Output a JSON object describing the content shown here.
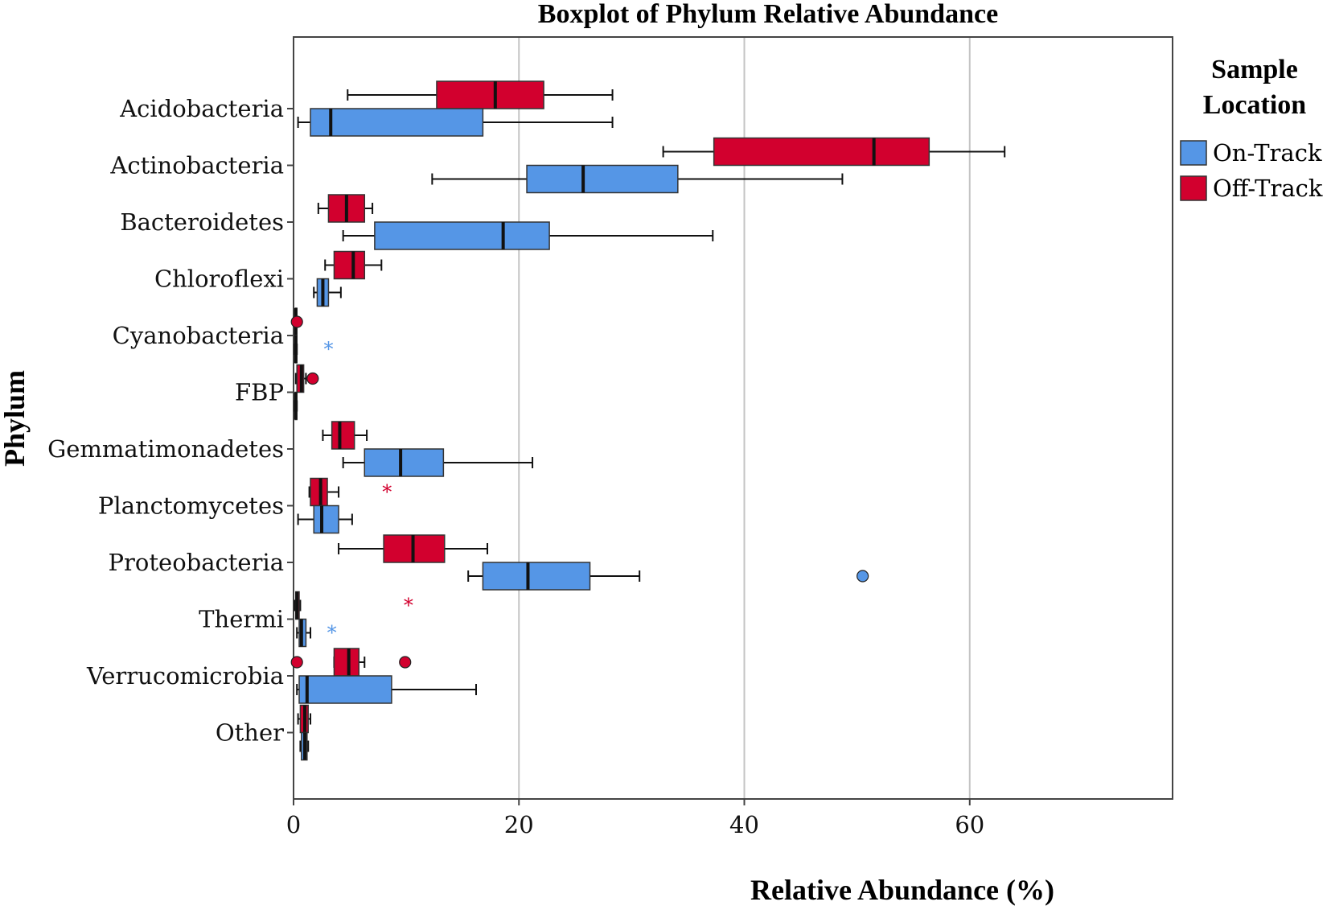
{
  "chart_data": {
    "type": "boxplot",
    "orientation": "horizontal",
    "title": "Boxplot of Phylum Relative Abundance",
    "xlabel": "Relative Abundance (%)",
    "ylabel": "Phylum",
    "xlim": [
      0,
      78
    ],
    "xticks": [
      0,
      20,
      40,
      60
    ],
    "xtick_labels": [
      "0",
      "20",
      "40",
      "60"
    ],
    "grid": "vertical",
    "legend": {
      "title_line1": "Sample",
      "title_line2": "Location",
      "position": "right",
      "entries": [
        "On-Track",
        "Off-Track"
      ]
    },
    "colors": {
      "On-Track": "#5596e6",
      "Off-Track": "#d2002e"
    },
    "categories": [
      "Acidobacteria",
      "Actinobacteria",
      "Bacteroidetes",
      "Chloroflexi",
      "Cyanobacteria",
      "FBP",
      "Gemmatimonadetes",
      "Planctomycetes",
      "Proteobacteria",
      "Thermi",
      "Verrucomicrobia",
      "Other"
    ],
    "series": [
      {
        "name": "Off-Track",
        "boxes": [
          {
            "min": 4.8,
            "q1": 12.7,
            "median": 17.9,
            "q3": 22.2,
            "max": 28.3,
            "outliers": []
          },
          {
            "min": 32.8,
            "q1": 37.3,
            "median": 51.5,
            "q3": 56.4,
            "max": 63.1,
            "outliers": []
          },
          {
            "min": 2.2,
            "q1": 3.1,
            "median": 4.7,
            "q3": 6.3,
            "max": 7.0,
            "outliers": []
          },
          {
            "min": 2.8,
            "q1": 3.6,
            "median": 5.3,
            "q3": 6.3,
            "max": 7.8,
            "outliers": []
          },
          {
            "min": 0.1,
            "q1": 0.15,
            "median": 0.2,
            "q3": 0.25,
            "max": 0.3,
            "outliers": [
              {
                "value": 0.3,
                "marker": "circle"
              }
            ]
          },
          {
            "min": 0.2,
            "q1": 0.3,
            "median": 0.7,
            "q3": 0.9,
            "max": 1.1,
            "outliers": [
              {
                "value": 1.7,
                "marker": "circle"
              }
            ]
          },
          {
            "min": 2.6,
            "q1": 3.4,
            "median": 4.1,
            "q3": 5.4,
            "max": 6.5,
            "outliers": []
          },
          {
            "min": 1.4,
            "q1": 1.5,
            "median": 2.4,
            "q3": 3.0,
            "max": 4.0,
            "outliers": [
              {
                "value": 8.3,
                "marker": "star"
              }
            ]
          },
          {
            "min": 4.0,
            "q1": 8.0,
            "median": 10.6,
            "q3": 13.4,
            "max": 17.2,
            "outliers": []
          },
          {
            "min": 0.1,
            "q1": 0.2,
            "median": 0.3,
            "q3": 0.5,
            "max": 0.6,
            "outliers": [
              {
                "value": 10.2,
                "marker": "star"
              }
            ]
          },
          {
            "min": 3.6,
            "q1": 3.6,
            "median": 4.9,
            "q3": 5.8,
            "max": 6.3,
            "outliers": [
              {
                "value": 0.3,
                "marker": "circle"
              },
              {
                "value": 9.9,
                "marker": "circle"
              }
            ]
          },
          {
            "min": 0.4,
            "q1": 0.6,
            "median": 1.0,
            "q3": 1.3,
            "max": 1.5,
            "outliers": []
          }
        ]
      },
      {
        "name": "On-Track",
        "boxes": [
          {
            "min": 0.4,
            "q1": 1.5,
            "median": 3.3,
            "q3": 16.8,
            "max": 28.3,
            "outliers": []
          },
          {
            "min": 12.3,
            "q1": 20.7,
            "median": 25.7,
            "q3": 34.1,
            "max": 48.7,
            "outliers": []
          },
          {
            "min": 4.4,
            "q1": 7.2,
            "median": 18.6,
            "q3": 22.7,
            "max": 37.2,
            "outliers": []
          },
          {
            "min": 1.8,
            "q1": 2.1,
            "median": 2.6,
            "q3": 3.1,
            "max": 4.2,
            "outliers": []
          },
          {
            "min": 0.1,
            "q1": 0.15,
            "median": 0.2,
            "q3": 0.25,
            "max": 0.3,
            "outliers": [
              {
                "value": 3.1,
                "marker": "star"
              }
            ]
          },
          {
            "min": 0.1,
            "q1": 0.15,
            "median": 0.2,
            "q3": 0.25,
            "max": 0.3,
            "outliers": []
          },
          {
            "min": 4.4,
            "q1": 6.3,
            "median": 9.5,
            "q3": 13.3,
            "max": 21.2,
            "outliers": []
          },
          {
            "min": 0.4,
            "q1": 1.8,
            "median": 2.5,
            "q3": 4.0,
            "max": 5.2,
            "outliers": []
          },
          {
            "min": 15.5,
            "q1": 16.8,
            "median": 20.8,
            "q3": 26.3,
            "max": 30.7,
            "outliers": [
              {
                "value": 50.5,
                "marker": "circle"
              }
            ]
          },
          {
            "min": 0.3,
            "q1": 0.5,
            "median": 0.7,
            "q3": 1.1,
            "max": 1.5,
            "outliers": [
              {
                "value": 3.4,
                "marker": "star"
              }
            ]
          },
          {
            "min": 0.3,
            "q1": 0.5,
            "median": 1.2,
            "q3": 8.7,
            "max": 16.2,
            "outliers": []
          },
          {
            "min": 0.6,
            "q1": 0.7,
            "median": 1.0,
            "q3": 1.2,
            "max": 1.3,
            "outliers": []
          }
        ]
      }
    ]
  }
}
